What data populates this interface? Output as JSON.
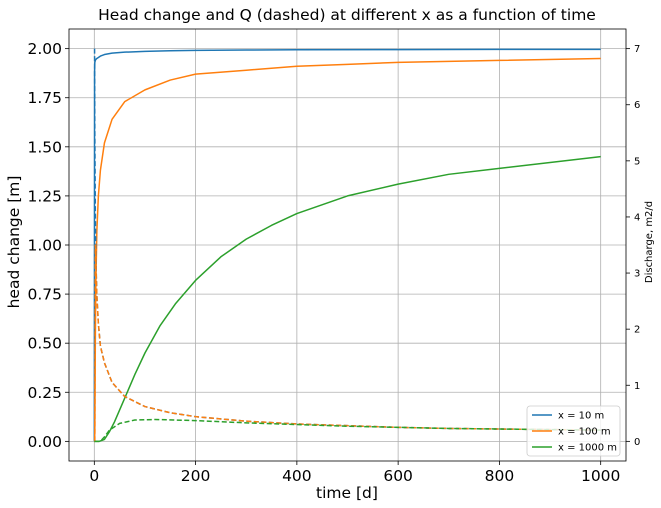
{
  "chart_data": {
    "type": "line",
    "title": "Head change and Q (dashed) at different x as a function of time",
    "xlabel": "time [d]",
    "ylabel": "head change [m]",
    "y2label": "Discharge, m2/d",
    "xlim": [
      -50,
      1050
    ],
    "ylim": [
      -0.1,
      2.1
    ],
    "y2lim": [
      -0.35,
      7.35
    ],
    "xticks": [
      0,
      200,
      400,
      600,
      800,
      1000
    ],
    "xtick_labels": [
      "0",
      "200",
      "400",
      "600",
      "800",
      "1000"
    ],
    "yticks": [
      0.0,
      0.25,
      0.5,
      0.75,
      1.0,
      1.25,
      1.5,
      1.75,
      2.0
    ],
    "ytick_labels": [
      "0.00",
      "0.25",
      "0.50",
      "0.75",
      "1.00",
      "1.25",
      "1.50",
      "1.75",
      "2.00"
    ],
    "y2ticks": [
      0,
      1,
      2,
      3,
      4,
      5,
      6,
      7
    ],
    "y2tick_labels": [
      "0",
      "1",
      "2",
      "3",
      "4",
      "5",
      "6",
      "7"
    ],
    "grid": true,
    "legend_position": "lower-right",
    "series": [
      {
        "name": "x = 10 m",
        "color": "#1f77b4",
        "axis": "left",
        "style": "solid",
        "x": [
          0,
          0.5,
          1,
          2,
          3,
          5,
          8,
          12,
          20,
          35,
          60,
          100,
          150,
          200,
          300,
          400,
          600,
          800,
          1000
        ],
        "y": [
          0.0,
          1.88,
          1.93,
          1.94,
          1.945,
          1.95,
          1.955,
          1.962,
          1.97,
          1.977,
          1.982,
          1.986,
          1.989,
          1.991,
          1.993,
          1.994,
          1.995,
          1.996,
          1.996
        ]
      },
      {
        "name": "x = 100 m",
        "color": "#ff7f0e",
        "axis": "left",
        "style": "solid",
        "x": [
          0,
          0.5,
          1,
          2,
          3,
          5,
          8,
          12,
          20,
          35,
          60,
          100,
          150,
          200,
          300,
          400,
          500,
          600,
          800,
          1000
        ],
        "y": [
          0.0,
          0.0,
          0.05,
          0.51,
          0.8,
          1.07,
          1.25,
          1.38,
          1.52,
          1.64,
          1.73,
          1.79,
          1.84,
          1.87,
          1.89,
          1.91,
          1.92,
          1.93,
          1.94,
          1.95
        ]
      },
      {
        "name": "x = 1000 m",
        "color": "#2ca02c",
        "axis": "left",
        "style": "solid",
        "x": [
          0,
          10,
          20,
          30,
          40,
          60,
          80,
          100,
          130,
          160,
          200,
          250,
          300,
          350,
          400,
          500,
          600,
          700,
          800,
          900,
          1000
        ],
        "y": [
          0.0,
          0.0,
          0.01,
          0.05,
          0.1,
          0.22,
          0.34,
          0.45,
          0.59,
          0.7,
          0.82,
          0.94,
          1.03,
          1.1,
          1.16,
          1.25,
          1.31,
          1.36,
          1.39,
          1.42,
          1.45
        ]
      },
      {
        "name": "",
        "color": "#1f77b4",
        "axis": "right",
        "style": "dashed",
        "x": [
          0.5,
          1,
          2,
          3,
          5,
          8,
          12,
          20,
          35,
          60,
          100,
          150,
          200,
          300,
          400,
          500,
          600,
          700,
          800,
          900,
          1000
        ],
        "y": [
          7.0,
          5.5,
          4.1,
          3.3,
          2.6,
          2.1,
          1.7,
          1.4,
          1.05,
          0.8,
          0.62,
          0.51,
          0.44,
          0.36,
          0.31,
          0.28,
          0.25,
          0.23,
          0.22,
          0.21,
          0.2
        ]
      },
      {
        "name": "",
        "color": "#ff7f0e",
        "axis": "right",
        "style": "dashed",
        "x": [
          1,
          2,
          3,
          5,
          8,
          12,
          20,
          35,
          60,
          100,
          150,
          200,
          300,
          400,
          500,
          600,
          700,
          800,
          900,
          1000
        ],
        "y": [
          0.0,
          3.5,
          3.2,
          2.6,
          2.1,
          1.7,
          1.4,
          1.05,
          0.8,
          0.62,
          0.51,
          0.44,
          0.36,
          0.31,
          0.28,
          0.25,
          0.23,
          0.22,
          0.21,
          0.2
        ]
      },
      {
        "name": "",
        "color": "#2ca02c",
        "axis": "right",
        "style": "dashed",
        "x": [
          0,
          10,
          15,
          20,
          30,
          50,
          80,
          120,
          160,
          200,
          300,
          400,
          500,
          600,
          700,
          800,
          900,
          1000
        ],
        "y": [
          0.0,
          0.0,
          0.03,
          0.08,
          0.2,
          0.32,
          0.38,
          0.39,
          0.38,
          0.37,
          0.33,
          0.3,
          0.27,
          0.25,
          0.23,
          0.22,
          0.21,
          0.2
        ]
      }
    ],
    "legend": [
      {
        "label": "x = 10 m",
        "color": "#1f77b4"
      },
      {
        "label": "x = 100 m",
        "color": "#ff7f0e"
      },
      {
        "label": "x = 1000 m",
        "color": "#2ca02c"
      }
    ]
  }
}
